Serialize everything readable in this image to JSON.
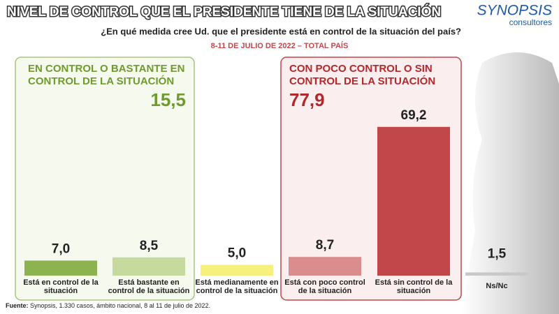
{
  "chart_data": {
    "type": "bar",
    "title": "NIVEL DE CONTROL QUE EL PRESIDENTE TIENE DE LA SITUACIÓN",
    "subtitle": "¿En qué medida cree Ud. que el presidente está en control de la situación del país?",
    "date_note": "8-11 DE JULIO DE 2022 – TOTAL PAÍS",
    "brand": "SYNOPSIS",
    "brand_sub": "consultores",
    "source_label": "Fuente:",
    "source": "Synopsis, 1.330 casos, ámbito nacional, 8 al 11 de julio de 2022.",
    "categories": [
      "Está en control de la situación",
      "Está bastante en control de la situación",
      "Está medianamente en control de la situación",
      "Está con poco control de la situación",
      "Está sin control de la situación",
      "Ns/Nc"
    ],
    "values": [
      7.0,
      8.5,
      5.0,
      8.7,
      69.2,
      1.5
    ],
    "value_labels": [
      "7,0",
      "8,5",
      "5,0",
      "8,7",
      "69,2",
      "1,5"
    ],
    "colors": [
      "#8db350",
      "#c5da9c",
      "#f6f07c",
      "#db8c8c",
      "#c2474a",
      "#c8c8c8"
    ],
    "groups": [
      {
        "label": "EN CONTROL O BASTANTE EN CONTROL DE LA SITUACIÓN",
        "value": 15.5,
        "value_label": "15,5",
        "color": "#6f9a2e"
      },
      {
        "label": "CON POCO CONTROL O SIN CONTROL DE LA SITUACIÓN",
        "value": 77.9,
        "value_label": "77,9",
        "color": "#b3282d"
      }
    ]
  }
}
